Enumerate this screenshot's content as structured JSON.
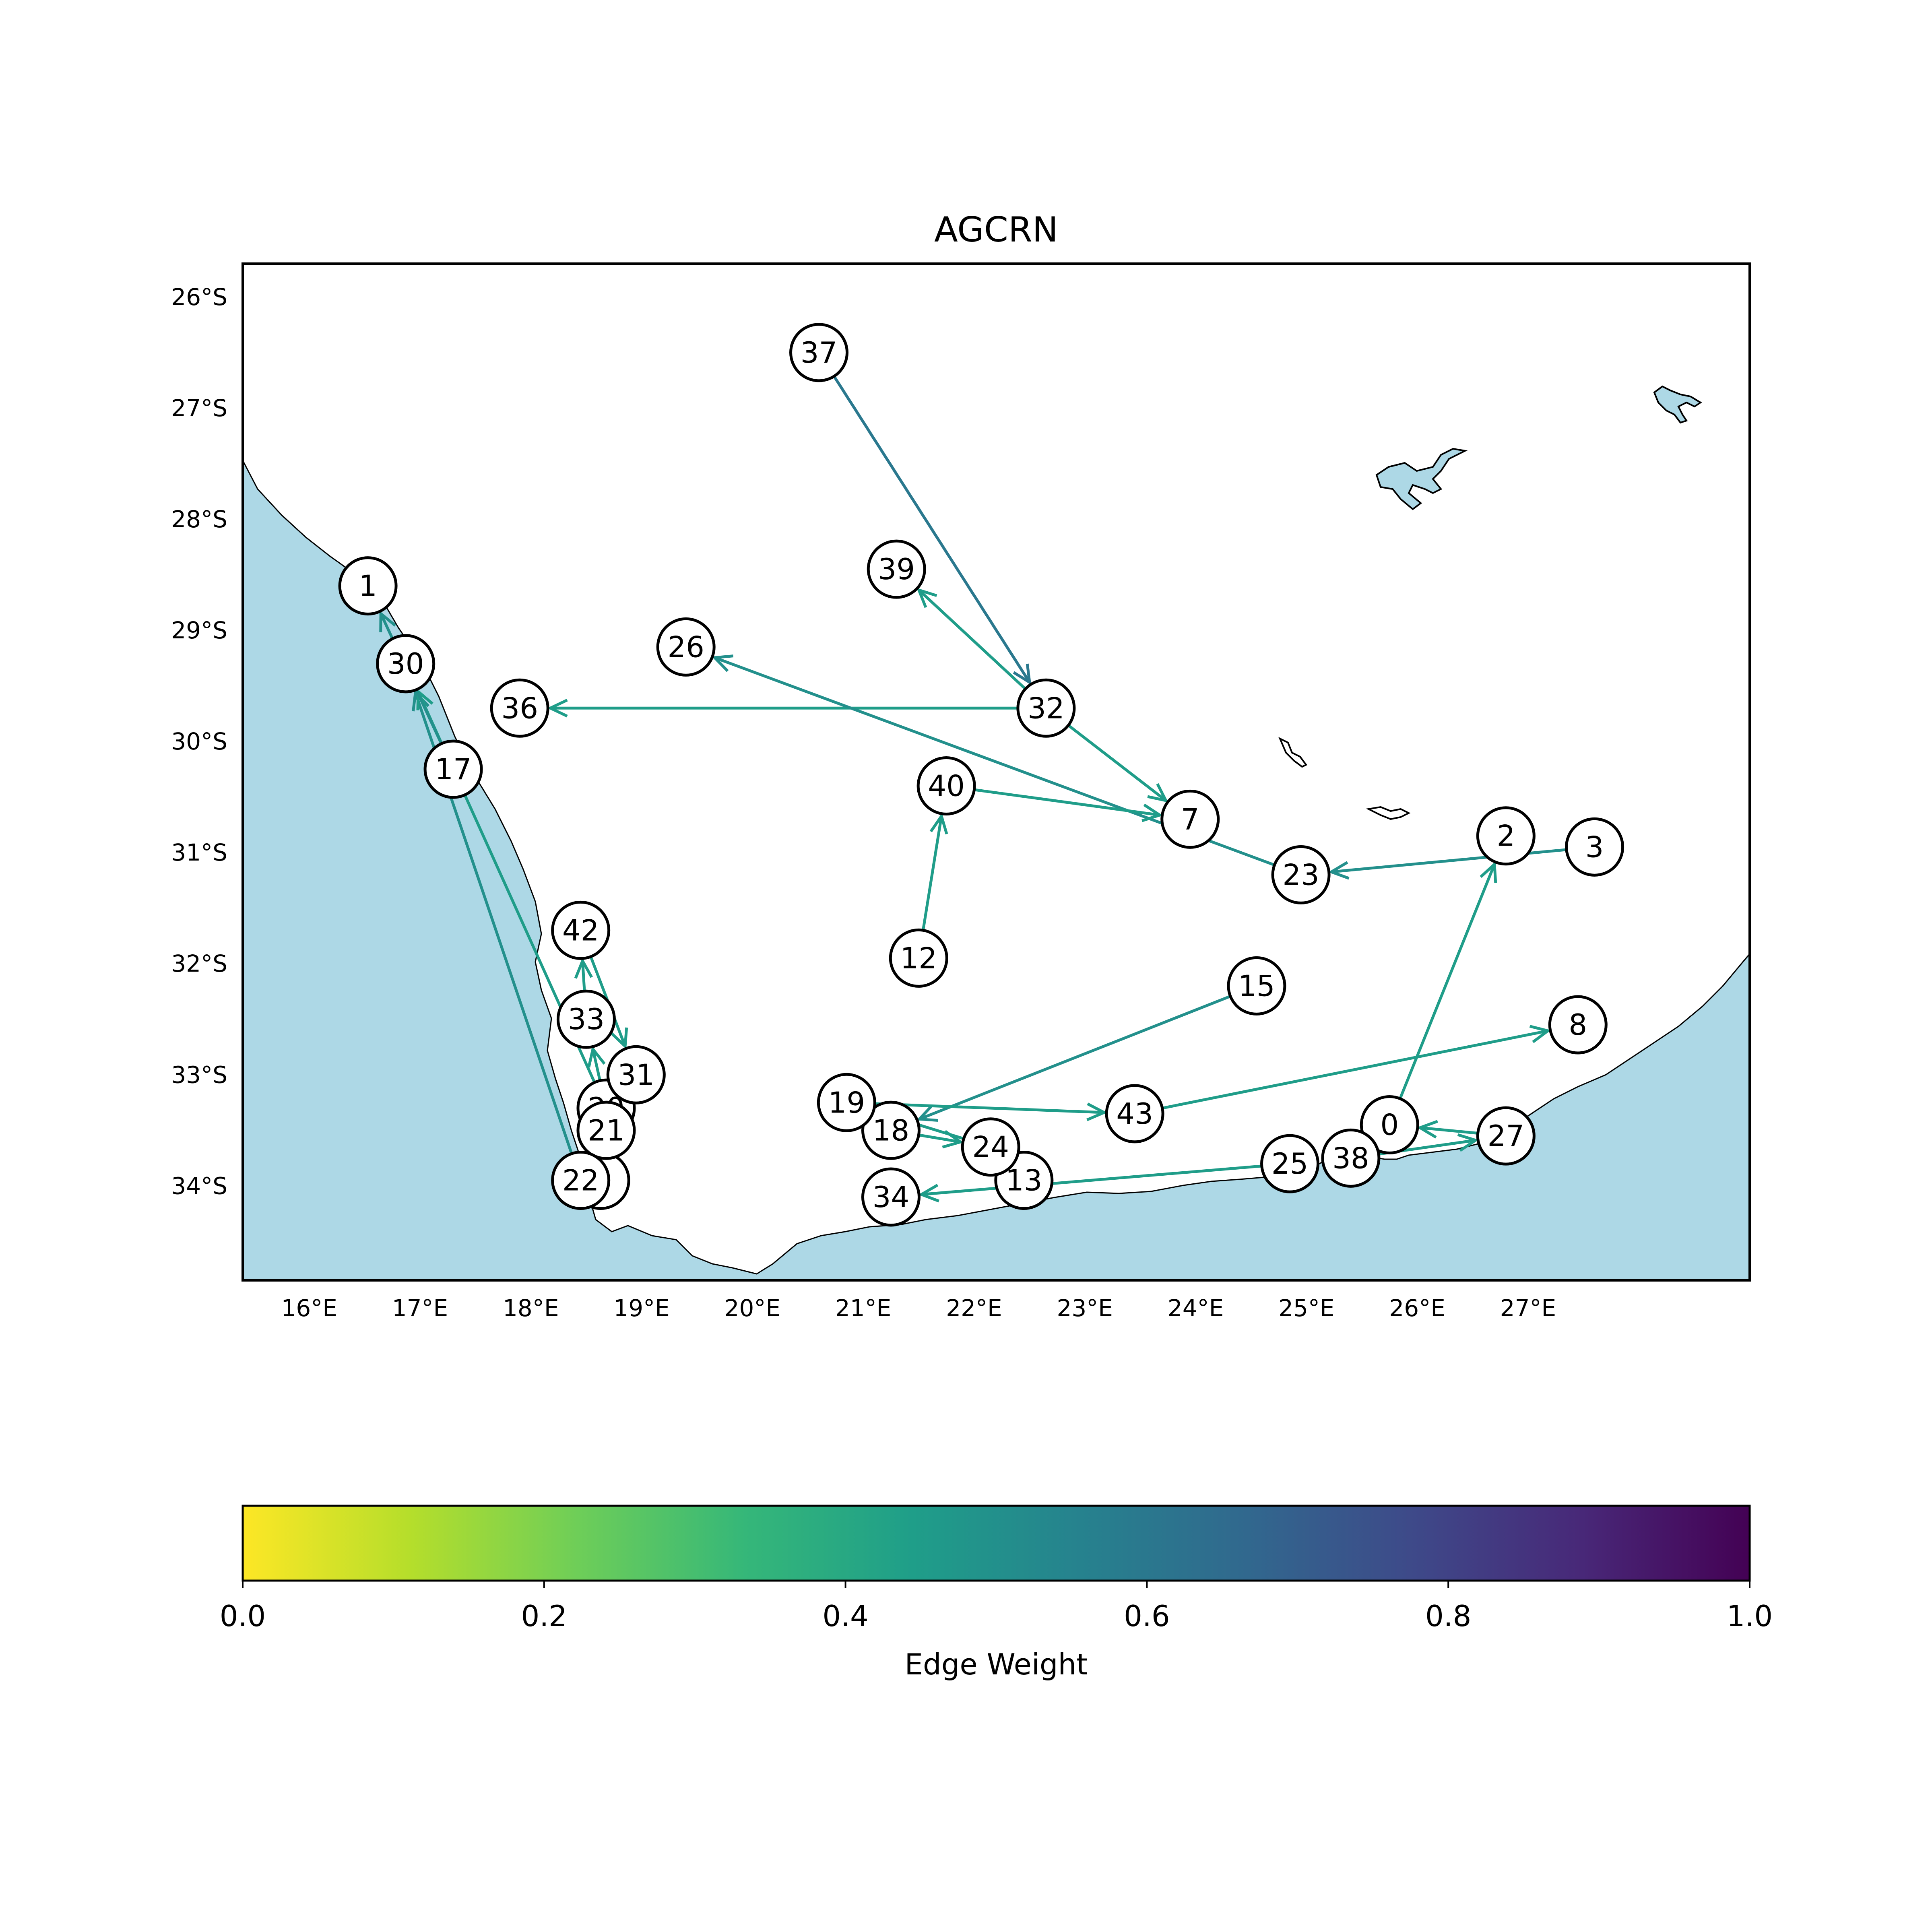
{
  "title": "AGCRN",
  "colorbar": {
    "label": "Edge Weight",
    "ticks": [
      "0.0",
      "0.2",
      "0.4",
      "0.6",
      "0.8",
      "1.0"
    ],
    "colormap": [
      "#fde725",
      "#b5de2b",
      "#6ece58",
      "#35b779",
      "#1f9e89",
      "#26828e",
      "#31688e",
      "#3e4989",
      "#482878",
      "#440154"
    ]
  },
  "colors": {
    "ocean": "#add8e6",
    "land": "#ffffff",
    "edge_weight_0.45": "#1f9e89",
    "edge_weight_0.5": "#21918c",
    "edge_weight_0.6": "#2a788e"
  },
  "chart_data": {
    "type": "network-map",
    "extent": {
      "lon": [
        15.4,
        29.0
      ],
      "lat": [
        -34.85,
        -25.7
      ]
    },
    "lon_ticks": [
      "16°E",
      "17°E",
      "18°E",
      "19°E",
      "20°E",
      "21°E",
      "22°E",
      "23°E",
      "24°E",
      "25°E",
      "26°E",
      "27°E"
    ],
    "lat_ticks": [
      "26°S",
      "27°S",
      "28°S",
      "29°S",
      "30°S",
      "31°S",
      "32°S",
      "33°S",
      "34°S"
    ],
    "nodes": [
      {
        "id": "0",
        "lon": 25.75,
        "lat": -33.45
      },
      {
        "id": "1",
        "lon": 16.53,
        "lat": -28.6
      },
      {
        "id": "2",
        "lon": 26.8,
        "lat": -30.85
      },
      {
        "id": "3",
        "lon": 27.6,
        "lat": -30.95
      },
      {
        "id": "6",
        "lon": 18.63,
        "lat": -33.95
      },
      {
        "id": "7",
        "lon": 23.95,
        "lat": -30.7
      },
      {
        "id": "8",
        "lon": 27.45,
        "lat": -32.55
      },
      {
        "id": "12",
        "lon": 21.5,
        "lat": -31.95
      },
      {
        "id": "13",
        "lon": 22.45,
        "lat": -33.95
      },
      {
        "id": "15",
        "lon": 24.55,
        "lat": -32.2
      },
      {
        "id": "17",
        "lon": 17.3,
        "lat": -30.25
      },
      {
        "id": "18",
        "lon": 21.25,
        "lat": -33.5
      },
      {
        "id": "19",
        "lon": 20.85,
        "lat": -33.25
      },
      {
        "id": "20",
        "lon": 18.68,
        "lat": -33.3
      },
      {
        "id": "21",
        "lon": 18.68,
        "lat": -33.5
      },
      {
        "id": "22",
        "lon": 18.45,
        "lat": -33.95
      },
      {
        "id": "23",
        "lon": 24.95,
        "lat": -31.2
      },
      {
        "id": "24",
        "lon": 22.15,
        "lat": -33.65
      },
      {
        "id": "25",
        "lon": 24.85,
        "lat": -33.8
      },
      {
        "id": "26",
        "lon": 19.4,
        "lat": -29.15
      },
      {
        "id": "27",
        "lon": 26.8,
        "lat": -33.55
      },
      {
        "id": "30",
        "lon": 16.87,
        "lat": -29.3
      },
      {
        "id": "31",
        "lon": 18.95,
        "lat": -33.0
      },
      {
        "id": "32",
        "lon": 22.65,
        "lat": -29.7
      },
      {
        "id": "33",
        "lon": 18.5,
        "lat": -32.5
      },
      {
        "id": "34",
        "lon": 21.25,
        "lat": -34.1
      },
      {
        "id": "36",
        "lon": 17.9,
        "lat": -29.7
      },
      {
        "id": "37",
        "lon": 20.6,
        "lat": -26.5
      },
      {
        "id": "38",
        "lon": 25.4,
        "lat": -33.75
      },
      {
        "id": "39",
        "lon": 21.3,
        "lat": -28.45
      },
      {
        "id": "40",
        "lon": 21.75,
        "lat": -30.4
      },
      {
        "id": "42",
        "lon": 18.45,
        "lat": -31.7
      },
      {
        "id": "43",
        "lon": 23.45,
        "lat": -33.35
      }
    ],
    "edges": [
      {
        "from": "37",
        "to": "32",
        "weight": 0.6
      },
      {
        "from": "32",
        "to": "39",
        "weight": 0.45
      },
      {
        "from": "32",
        "to": "36",
        "weight": 0.45
      },
      {
        "from": "32",
        "to": "7",
        "weight": 0.45
      },
      {
        "from": "23",
        "to": "26",
        "weight": 0.5
      },
      {
        "from": "40",
        "to": "7",
        "weight": 0.45
      },
      {
        "from": "12",
        "to": "40",
        "weight": 0.45
      },
      {
        "from": "3",
        "to": "23",
        "weight": 0.5
      },
      {
        "from": "0",
        "to": "2",
        "weight": 0.45
      },
      {
        "from": "15",
        "to": "18",
        "weight": 0.5
      },
      {
        "from": "19",
        "to": "43",
        "weight": 0.45
      },
      {
        "from": "43",
        "to": "8",
        "weight": 0.45
      },
      {
        "from": "24",
        "to": "19",
        "weight": 0.45
      },
      {
        "from": "18",
        "to": "24",
        "weight": 0.45
      },
      {
        "from": "25",
        "to": "34",
        "weight": 0.45
      },
      {
        "from": "38",
        "to": "27",
        "weight": 0.45
      },
      {
        "from": "27",
        "to": "0",
        "weight": 0.45
      },
      {
        "from": "22",
        "to": "30",
        "weight": 0.5
      },
      {
        "from": "20",
        "to": "30",
        "weight": 0.45
      },
      {
        "from": "17",
        "to": "1",
        "weight": 0.5
      },
      {
        "from": "33",
        "to": "42",
        "weight": 0.45
      },
      {
        "from": "42",
        "to": "31",
        "weight": 0.45
      },
      {
        "from": "20",
        "to": "33",
        "weight": 0.45
      }
    ]
  }
}
